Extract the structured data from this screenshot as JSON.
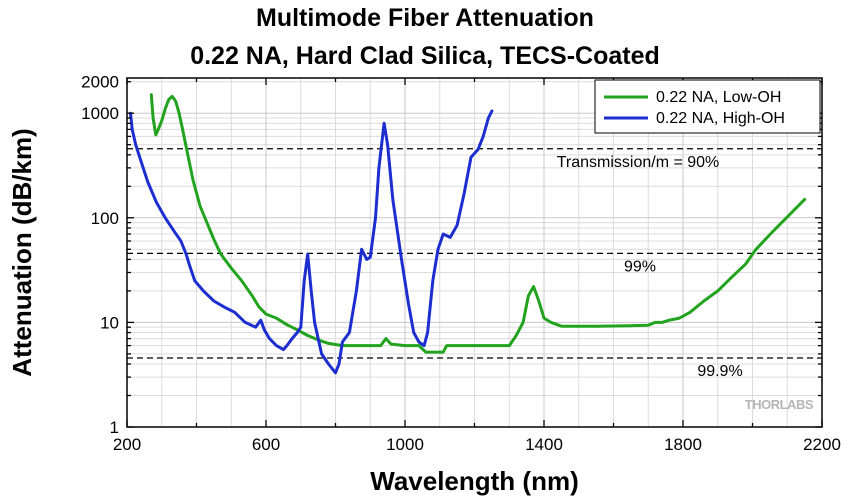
{
  "chart_data": {
    "type": "line",
    "title": "Multimode Fiber Attenuation",
    "subtitle": "0.22 NA,  Hard Clad Silica, TECS-Coated",
    "xlabel": "Wavelength (nm)",
    "ylabel": "Attenuation (dB/km)",
    "xlim": [
      200,
      2200
    ],
    "ylim": [
      1,
      2000
    ],
    "yscale": "log",
    "grid": true,
    "legend_position": "top-right",
    "x_ticks": [
      "200",
      "600",
      "1000",
      "1400",
      "1800",
      "2200"
    ],
    "y_ticks": [
      "1",
      "10",
      "100",
      "1000",
      "2000"
    ],
    "series": [
      {
        "name": "0.22 NA, Low-OH",
        "color": "#22a31e",
        "points": [
          [
            270,
            1500
          ],
          [
            275,
            900
          ],
          [
            283,
            620
          ],
          [
            290,
            700
          ],
          [
            300,
            850
          ],
          [
            310,
            1100
          ],
          [
            320,
            1350
          ],
          [
            330,
            1450
          ],
          [
            340,
            1300
          ],
          [
            350,
            1000
          ],
          [
            360,
            700
          ],
          [
            375,
            400
          ],
          [
            390,
            230
          ],
          [
            410,
            130
          ],
          [
            430,
            90
          ],
          [
            450,
            62
          ],
          [
            470,
            45
          ],
          [
            500,
            33
          ],
          [
            530,
            25
          ],
          [
            560,
            18
          ],
          [
            580,
            14
          ],
          [
            600,
            12
          ],
          [
            630,
            11
          ],
          [
            660,
            9.5
          ],
          [
            690,
            8.5
          ],
          [
            720,
            7.5
          ],
          [
            750,
            6.8
          ],
          [
            780,
            6.3
          ],
          [
            820,
            6.0
          ],
          [
            880,
            6.0
          ],
          [
            930,
            6.0
          ],
          [
            945,
            7.0
          ],
          [
            960,
            6.2
          ],
          [
            1000,
            6.0
          ],
          [
            1040,
            6.0
          ],
          [
            1060,
            5.2
          ],
          [
            1110,
            5.2
          ],
          [
            1120,
            6.0
          ],
          [
            1200,
            6.0
          ],
          [
            1300,
            6.0
          ],
          [
            1320,
            7.5
          ],
          [
            1340,
            10
          ],
          [
            1355,
            18
          ],
          [
            1370,
            22
          ],
          [
            1385,
            16
          ],
          [
            1400,
            11
          ],
          [
            1420,
            10
          ],
          [
            1450,
            9.2
          ],
          [
            1550,
            9.2
          ],
          [
            1650,
            9.3
          ],
          [
            1700,
            9.4
          ],
          [
            1720,
            10
          ],
          [
            1740,
            10
          ],
          [
            1760,
            10.5
          ],
          [
            1790,
            11
          ],
          [
            1820,
            12.5
          ],
          [
            1860,
            16
          ],
          [
            1900,
            20
          ],
          [
            1940,
            27
          ],
          [
            1980,
            36
          ],
          [
            2010,
            50
          ],
          [
            2060,
            75
          ],
          [
            2110,
            110
          ],
          [
            2150,
            150
          ]
        ]
      },
      {
        "name": "0.22 NA, High-OH",
        "color": "#1c2ed0",
        "points": [
          [
            210,
            1000
          ],
          [
            215,
            700
          ],
          [
            225,
            500
          ],
          [
            240,
            350
          ],
          [
            260,
            220
          ],
          [
            285,
            140
          ],
          [
            310,
            100
          ],
          [
            335,
            75
          ],
          [
            355,
            60
          ],
          [
            370,
            45
          ],
          [
            380,
            35
          ],
          [
            395,
            25
          ],
          [
            420,
            20
          ],
          [
            450,
            16
          ],
          [
            480,
            14
          ],
          [
            510,
            12.5
          ],
          [
            540,
            10
          ],
          [
            570,
            9
          ],
          [
            585,
            10.5
          ],
          [
            595,
            8.5
          ],
          [
            610,
            7
          ],
          [
            630,
            6
          ],
          [
            650,
            5.5
          ],
          [
            660,
            6
          ],
          [
            675,
            7
          ],
          [
            690,
            8
          ],
          [
            700,
            9
          ],
          [
            710,
            25
          ],
          [
            720,
            45
          ],
          [
            730,
            20
          ],
          [
            740,
            10
          ],
          [
            760,
            5
          ],
          [
            780,
            4
          ],
          [
            800,
            3.3
          ],
          [
            810,
            4
          ],
          [
            820,
            6.5
          ],
          [
            840,
            8
          ],
          [
            860,
            20
          ],
          [
            875,
            50
          ],
          [
            890,
            40
          ],
          [
            900,
            42
          ],
          [
            915,
            100
          ],
          [
            925,
            300
          ],
          [
            940,
            800
          ],
          [
            950,
            500
          ],
          [
            965,
            150
          ],
          [
            990,
            40
          ],
          [
            1010,
            15
          ],
          [
            1025,
            8
          ],
          [
            1040,
            6.5
          ],
          [
            1055,
            6
          ],
          [
            1065,
            8
          ],
          [
            1080,
            25
          ],
          [
            1095,
            50
          ],
          [
            1110,
            70
          ],
          [
            1130,
            65
          ],
          [
            1150,
            85
          ],
          [
            1170,
            170
          ],
          [
            1190,
            380
          ],
          [
            1210,
            450
          ],
          [
            1225,
            600
          ],
          [
            1240,
            900
          ],
          [
            1250,
            1050
          ]
        ]
      }
    ],
    "annotations": [
      {
        "text": "Transmission/m = 90%",
        "y": 457
      },
      {
        "text": "99%",
        "y": 45.7
      },
      {
        "text": "99.9%",
        "y": 4.57
      }
    ],
    "watermark": "THORLABS"
  }
}
